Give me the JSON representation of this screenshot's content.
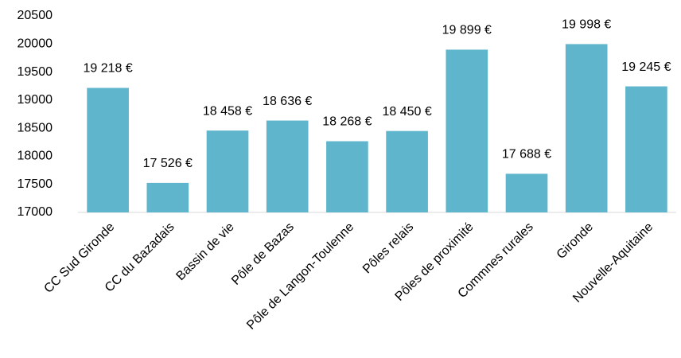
{
  "chart_data": {
    "type": "bar",
    "categories": [
      "CC Sud Gironde",
      "CC du Bazadais",
      "Bassin de vie",
      "Pôle de Bazas",
      "Pôle de Langon-Toulenne",
      "Pôles relais",
      "Pôles de proximité",
      "Commnes rurales",
      "Gironde",
      "Nouvelle-Aquitaine"
    ],
    "values": [
      19218,
      17526,
      18458,
      18636,
      18268,
      18450,
      19899,
      17688,
      19998,
      19245
    ],
    "value_labels": [
      "19 218 €",
      "17 526 €",
      "18 458 €",
      "18 636 €",
      "18 268 €",
      "18 450 €",
      "19 899 €",
      "17 688 €",
      "19 998 €",
      "19 245 €"
    ],
    "color": "#5eb5cc",
    "ylim": [
      17000,
      20500
    ],
    "yticks": [
      17000,
      17500,
      18000,
      18500,
      19000,
      19500,
      20000,
      20500
    ],
    "grid": false
  }
}
